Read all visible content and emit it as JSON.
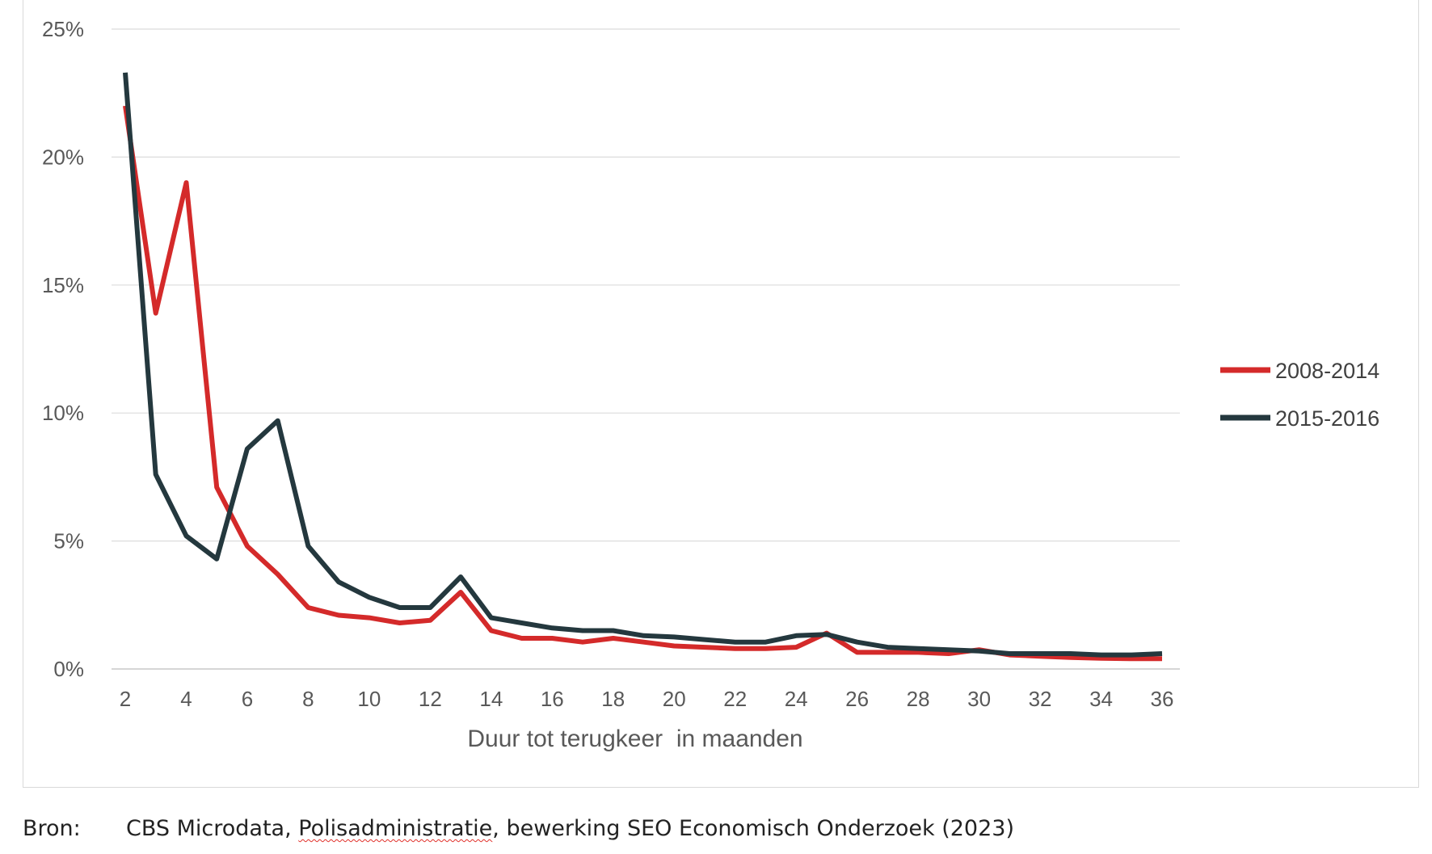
{
  "chart_data": {
    "type": "line",
    "xlabel": "Duur tot terugkeer  in maanden",
    "ylabel": "",
    "x": [
      2,
      3,
      4,
      5,
      6,
      7,
      8,
      9,
      10,
      11,
      12,
      13,
      14,
      15,
      16,
      17,
      18,
      19,
      20,
      21,
      22,
      23,
      24,
      25,
      26,
      27,
      28,
      29,
      30,
      31,
      32,
      33,
      34,
      35,
      36
    ],
    "x_ticks": [
      "2",
      "4",
      "6",
      "8",
      "10",
      "12",
      "14",
      "16",
      "18",
      "20",
      "22",
      "24",
      "26",
      "28",
      "30",
      "32",
      "34",
      "36"
    ],
    "ylim": [
      0,
      25
    ],
    "y_ticks": [
      "0%",
      "5%",
      "10%",
      "15%",
      "20%",
      "25%"
    ],
    "grid": true,
    "legend_position": "right",
    "series": [
      {
        "name": "2008-2014",
        "color": "#d42a2a",
        "values": [
          22.0,
          13.9,
          19.0,
          7.1,
          4.8,
          3.7,
          2.4,
          2.1,
          2.0,
          1.8,
          1.9,
          3.0,
          1.5,
          1.2,
          1.2,
          1.05,
          1.2,
          1.05,
          0.9,
          0.85,
          0.8,
          0.8,
          0.85,
          1.4,
          0.65,
          0.65,
          0.65,
          0.6,
          0.75,
          0.55,
          0.5,
          0.45,
          0.42,
          0.4,
          0.4
        ]
      },
      {
        "name": "2015-2016",
        "color": "#24383e",
        "values": [
          23.3,
          7.6,
          5.2,
          4.3,
          8.6,
          9.7,
          4.8,
          3.4,
          2.8,
          2.4,
          2.4,
          3.6,
          2.0,
          1.8,
          1.6,
          1.5,
          1.5,
          1.3,
          1.25,
          1.15,
          1.05,
          1.05,
          1.3,
          1.35,
          1.05,
          0.85,
          0.8,
          0.75,
          0.7,
          0.6,
          0.6,
          0.6,
          0.55,
          0.55,
          0.6
        ]
      }
    ]
  },
  "source": {
    "label": "Bron:",
    "text_before": "CBS Microdata, ",
    "text_underlined": "Polisadministratie",
    "text_after": ", bewerking SEO Economisch Onderzoek (2023)"
  }
}
